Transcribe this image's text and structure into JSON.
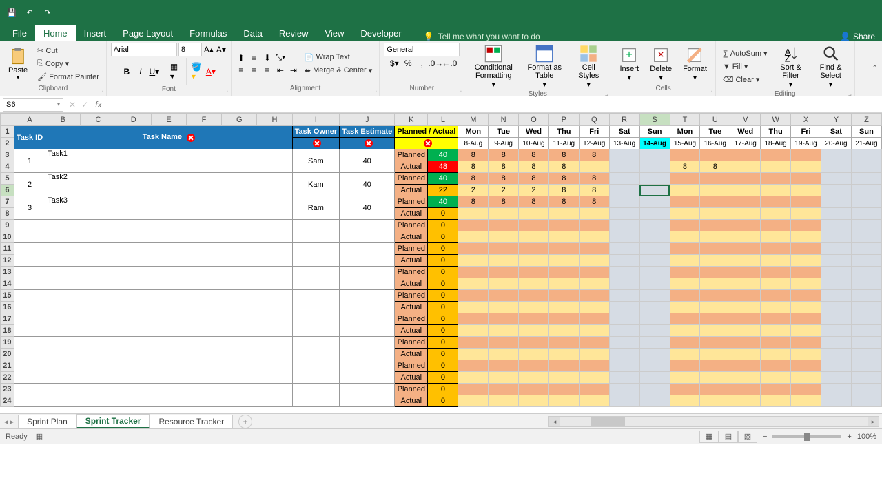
{
  "tabs": {
    "file": "File",
    "home": "Home",
    "insert": "Insert",
    "pageLayout": "Page Layout",
    "formulas": "Formulas",
    "data": "Data",
    "review": "Review",
    "view": "View",
    "developer": "Developer",
    "tellMe": "Tell me what you want to do",
    "share": "Share"
  },
  "ribbon": {
    "clipboard": {
      "paste": "Paste",
      "cut": "Cut",
      "copy": "Copy",
      "formatPainter": "Format Painter",
      "label": "Clipboard"
    },
    "font": {
      "name": "Arial",
      "size": "8",
      "label": "Font"
    },
    "alignment": {
      "wrap": "Wrap Text",
      "merge": "Merge & Center",
      "label": "Alignment"
    },
    "number": {
      "format": "General",
      "label": "Number"
    },
    "styles": {
      "cond": "Conditional Formatting",
      "table": "Format as Table",
      "cell": "Cell Styles",
      "label": "Styles"
    },
    "cells": {
      "insert": "Insert",
      "delete": "Delete",
      "format": "Format",
      "label": "Cells"
    },
    "editing": {
      "autosum": "AutoSum",
      "fill": "Fill",
      "clear": "Clear",
      "sort": "Sort & Filter",
      "find": "Find & Select",
      "label": "Editing"
    }
  },
  "nameBox": "S6",
  "colWidths": {
    "A": 30,
    "B": 52,
    "C": 52,
    "D": 52,
    "E": 52,
    "F": 52,
    "G": 52,
    "H": 52,
    "I": 52,
    "J": 52,
    "K": 48,
    "L": 44,
    "day": 44
  },
  "colLetters": [
    "A",
    "B",
    "C",
    "D",
    "E",
    "F",
    "G",
    "H",
    "I",
    "J",
    "K",
    "L",
    "M",
    "N",
    "O",
    "P",
    "Q",
    "R",
    "S",
    "T",
    "U",
    "V",
    "W",
    "X",
    "Y",
    "Z"
  ],
  "dayHeaders": [
    "Mon",
    "Tue",
    "Wed",
    "Thu",
    "Fri",
    "Sat",
    "Sun",
    "Mon",
    "Tue",
    "Wed",
    "Thu",
    "Fri",
    "Sat",
    "Sun"
  ],
  "dateHeaders": [
    "8-Aug",
    "9-Aug",
    "10-Aug",
    "11-Aug",
    "12-Aug",
    "13-Aug",
    "14-Aug",
    "15-Aug",
    "16-Aug",
    "17-Aug",
    "18-Aug",
    "19-Aug",
    "20-Aug",
    "21-Aug"
  ],
  "todayIndex": 6,
  "headers": {
    "taskId": "Task ID",
    "taskName": "Task Name",
    "taskOwner": "Task Owner",
    "taskEstimate": "Task Estimate",
    "plannedActual": "Planned / Actual"
  },
  "colors": {
    "planned_lbl": "#f4b084",
    "actual_lbl": "#f4b084",
    "green": "#00b050",
    "red": "#ff0000",
    "orange": "#ffc000",
    "gantt_planned": "#f4b084",
    "gantt_actual": "#ffe699",
    "weekend": "#d6dce4"
  },
  "tasks": [
    {
      "id": "1",
      "name": "Task1",
      "owner": "Sam",
      "estimate": "40",
      "planned": {
        "total": 40,
        "days": [
          "8",
          "8",
          "8",
          "8",
          "8",
          "",
          "",
          "",
          "",
          "",
          "",
          "",
          "",
          ""
        ]
      },
      "actual": {
        "total": 48,
        "bg": "red",
        "days": [
          "8",
          "8",
          "8",
          "8",
          "",
          "",
          "",
          "8",
          "8",
          "",
          "",
          "",
          "",
          ""
        ]
      }
    },
    {
      "id": "2",
      "name": "Task2",
      "owner": "Kam",
      "estimate": "40",
      "planned": {
        "total": 40,
        "days": [
          "8",
          "8",
          "8",
          "8",
          "8",
          "",
          "",
          "",
          "",
          "",
          "",
          "",
          "",
          ""
        ]
      },
      "actual": {
        "total": 22,
        "bg": "orange",
        "days": [
          "2",
          "2",
          "2",
          "8",
          "8",
          "",
          "",
          "",
          "",
          "",
          "",
          "",
          "",
          ""
        ]
      }
    },
    {
      "id": "3",
      "name": "Task3",
      "owner": "Ram",
      "estimate": "40",
      "planned": {
        "total": 40,
        "days": [
          "8",
          "8",
          "8",
          "8",
          "8",
          "",
          "",
          "",
          "",
          "",
          "",
          "",
          "",
          ""
        ]
      },
      "actual": {
        "total": 0,
        "bg": "orange",
        "days": [
          "",
          "",
          "",
          "",
          "",
          "",
          "",
          "",
          "",
          "",
          "",
          "",
          "",
          ""
        ]
      }
    }
  ],
  "emptyRows": 8,
  "sheetTabs": {
    "t1": "Sprint Plan",
    "t2": "Sprint Tracker",
    "t3": "Resource Tracker"
  },
  "status": {
    "ready": "Ready",
    "zoom": "100%"
  }
}
